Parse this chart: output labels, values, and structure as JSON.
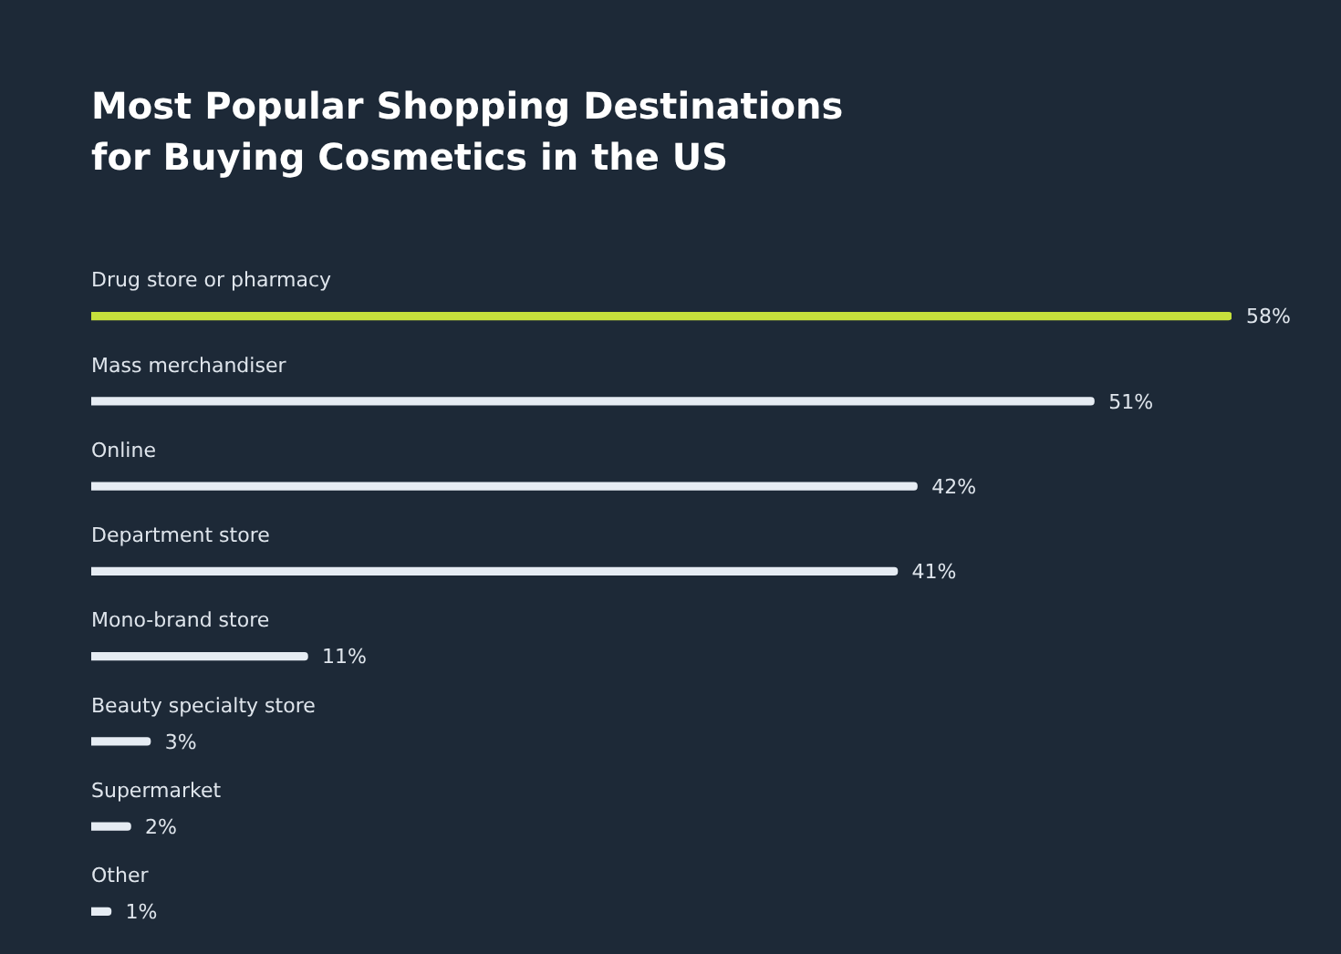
{
  "chart_data": {
    "type": "bar",
    "orientation": "horizontal",
    "title": "Most Popular Shopping Destinations for Buying Cosmetics in the US",
    "categories": [
      "Drug store or pharmacy",
      "Mass merchandiser",
      "Online",
      "Department store",
      "Mono-brand store",
      "Beauty specialty store",
      "Supermarket",
      "Other"
    ],
    "values": [
      58,
      51,
      42,
      41,
      11,
      3,
      2,
      1
    ],
    "value_labels": [
      "58%",
      "51%",
      "42%",
      "41%",
      "11%",
      "3%",
      "2%",
      "1%"
    ],
    "colors": [
      "#c6e03c",
      "#e6ecf3",
      "#e6ecf3",
      "#e6ecf3",
      "#e6ecf3",
      "#e6ecf3",
      "#e6ecf3",
      "#e6ecf3"
    ],
    "legend": false
  }
}
